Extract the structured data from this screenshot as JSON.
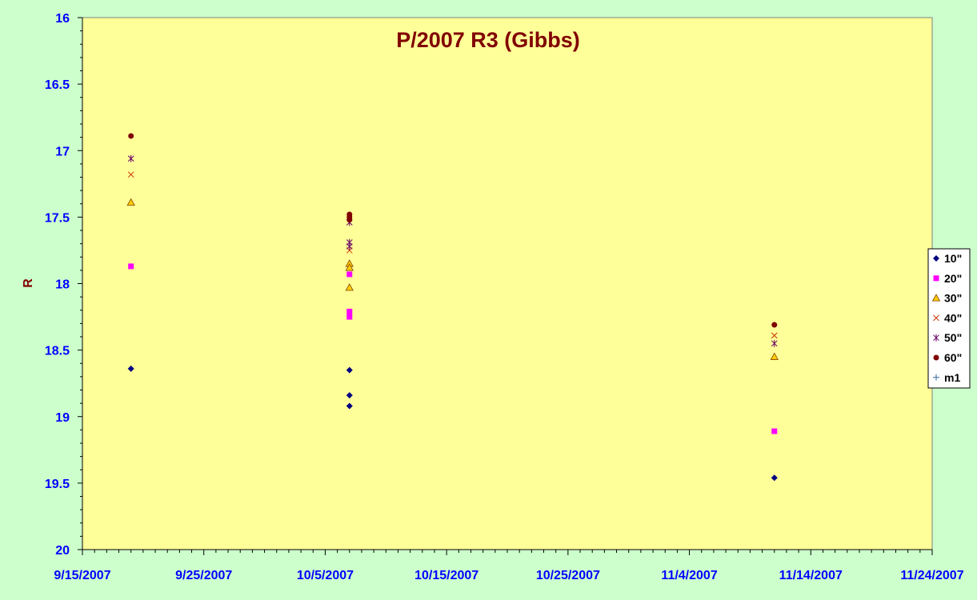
{
  "chart_data": {
    "type": "scatter",
    "title": "P/2007 R3 (Gibbs)",
    "xlabel": "",
    "ylabel": "R",
    "x_axis": {
      "type": "date",
      "range": [
        "2007-09-15",
        "2007-11-24"
      ],
      "tick_labels": [
        "9/15/2007",
        "9/25/2007",
        "10/5/2007",
        "10/15/2007",
        "10/25/2007",
        "11/4/2007",
        "11/14/2007",
        "11/24/2007"
      ]
    },
    "y_axis": {
      "reversed": true,
      "range": [
        16,
        20
      ],
      "tick_labels": [
        "16",
        "16.5",
        "17",
        "17.5",
        "18",
        "18.5",
        "19",
        "19.5",
        "20"
      ]
    },
    "grid": false,
    "legend_position": "right",
    "colors": {
      "page_background": "#ccffcc",
      "plot_background": "#ffff99",
      "title": "#800000",
      "tick_labels": "#0000ff",
      "axis_title": "#800000"
    },
    "series": [
      {
        "name": "10\"",
        "marker": "diamond",
        "color": "#000080",
        "points": [
          [
            "2007-09-19",
            18.64
          ],
          [
            "2007-10-07",
            18.65
          ],
          [
            "2007-10-07",
            18.84
          ],
          [
            "2007-10-07",
            18.92
          ],
          [
            "2007-11-11",
            19.46
          ]
        ]
      },
      {
        "name": "20\"",
        "marker": "square",
        "color": "#ff00ff",
        "points": [
          [
            "2007-09-19",
            17.87
          ],
          [
            "2007-10-07",
            17.93
          ],
          [
            "2007-10-07",
            18.21
          ],
          [
            "2007-10-07",
            18.25
          ],
          [
            "2007-11-11",
            19.11
          ]
        ]
      },
      {
        "name": "30\"",
        "marker": "triangle",
        "color": "#ffcc00",
        "points": [
          [
            "2007-09-19",
            17.39
          ],
          [
            "2007-10-07",
            17.85
          ],
          [
            "2007-10-07",
            17.88
          ],
          [
            "2007-10-07",
            18.03
          ],
          [
            "2007-11-11",
            18.55
          ]
        ]
      },
      {
        "name": "40\"",
        "marker": "x",
        "color": "#cc3300",
        "points": [
          [
            "2007-09-19",
            17.18
          ],
          [
            "2007-10-07",
            17.75
          ],
          [
            "2007-11-11",
            18.39
          ]
        ]
      },
      {
        "name": "50\"",
        "marker": "star",
        "color": "#660066",
        "points": [
          [
            "2007-09-19",
            17.06
          ],
          [
            "2007-10-07",
            17.54
          ],
          [
            "2007-10-07",
            17.69
          ],
          [
            "2007-10-07",
            17.72
          ],
          [
            "2007-11-11",
            18.45
          ]
        ]
      },
      {
        "name": "60\"",
        "marker": "circle",
        "color": "#800000",
        "points": [
          [
            "2007-09-19",
            16.89
          ],
          [
            "2007-10-07",
            17.48
          ],
          [
            "2007-10-07",
            17.5
          ],
          [
            "2007-10-07",
            17.52
          ],
          [
            "2007-11-11",
            18.31
          ]
        ]
      },
      {
        "name": "m1",
        "marker": "plus",
        "color": "#336699",
        "points": []
      }
    ]
  }
}
